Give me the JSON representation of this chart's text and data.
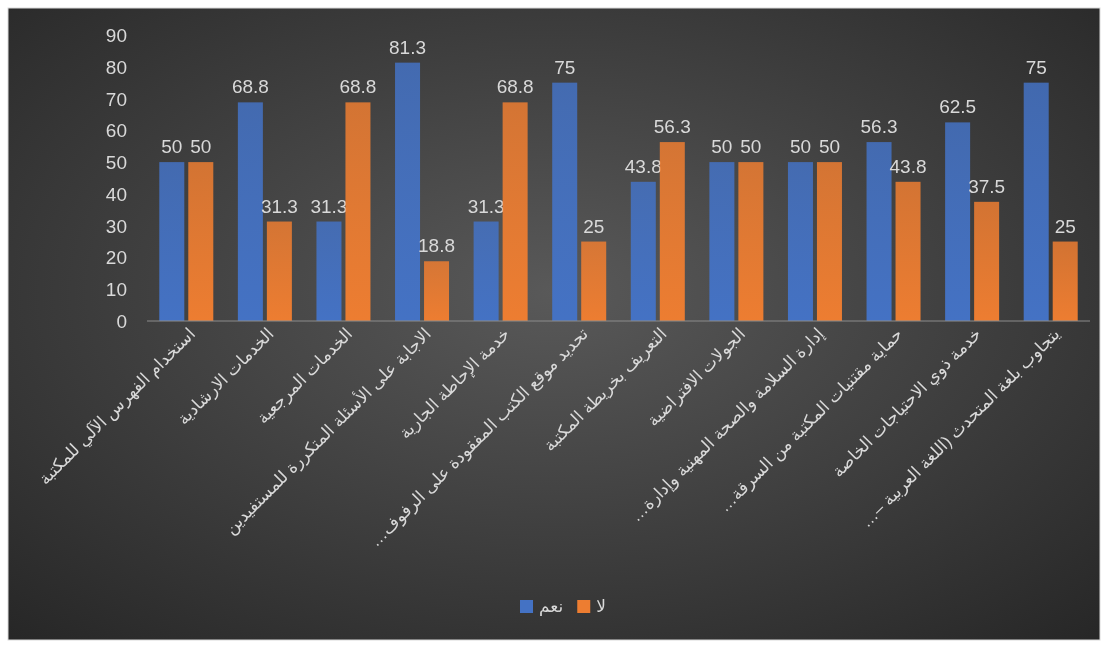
{
  "chart_data": {
    "type": "bar",
    "categories": [
      "استخدام الفهرس الآلي للمكتبة",
      "الخدمات الارشادية",
      "الخدمات المرجعية",
      "الاجابة على الأسئلة المتكررة للمستفيدين",
      "خدمة الإحاطة الجارية",
      "تحديد موقع الكتب المفقودة على الرفوف…",
      "التعريف بخريطة المكتبة",
      "الجولات الافتراضية",
      "إدارة السلامة والصحة المهنية وإدارة…",
      "حماية مقتنيات المكتبة من السرقة…",
      "خدمة ذوي الاحتياجات الخاصة",
      "يتجاوب بلغة المتحدث (اللغة العربية –…"
    ],
    "series": [
      {
        "name": "نعم",
        "color": "#4472c4",
        "values": [
          50,
          68.8,
          31.3,
          81.3,
          31.3,
          75,
          43.8,
          50,
          50,
          56.3,
          62.5,
          75
        ]
      },
      {
        "name": "لا",
        "color": "#ed7d31",
        "values": [
          50,
          31.3,
          68.8,
          18.8,
          68.8,
          25,
          56.3,
          50,
          50,
          43.8,
          37.5,
          25
        ]
      }
    ],
    "ylim": [
      0,
      90
    ],
    "yticks": [
      0,
      10,
      20,
      30,
      40,
      50,
      60,
      70,
      80,
      90
    ],
    "data_labels": true,
    "legend": "bottom",
    "grid": false
  }
}
